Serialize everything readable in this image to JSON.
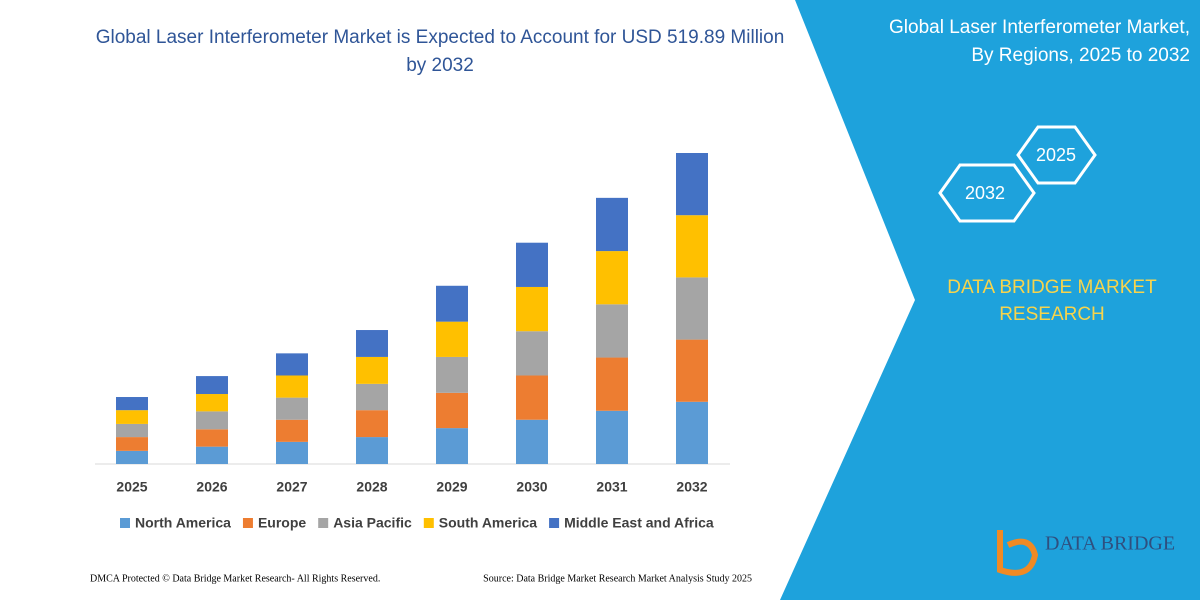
{
  "chart_data": {
    "type": "bar",
    "stacked": true,
    "title": "Global Laser Interferometer Market is Expected to Account for USD 519.89 Million by 2032",
    "categories": [
      "2025",
      "2026",
      "2027",
      "2028",
      "2029",
      "2030",
      "2031",
      "2032"
    ],
    "series": [
      {
        "name": "North America",
        "color": "#5b9bd5",
        "values": [
          22,
          29,
          37,
          45,
          60,
          74,
          89,
          104
        ]
      },
      {
        "name": "Europe",
        "color": "#ed7d31",
        "values": [
          23,
          29,
          37,
          45,
          59,
          74,
          89,
          104
        ]
      },
      {
        "name": "Asia Pacific",
        "color": "#a5a5a5",
        "values": [
          22,
          30,
          37,
          44,
          60,
          74,
          89,
          104
        ]
      },
      {
        "name": "South America",
        "color": "#ffc000",
        "values": [
          23,
          29,
          37,
          45,
          59,
          74,
          89,
          104
        ]
      },
      {
        "name": "Middle East and Africa",
        "color": "#4472c4",
        "values": [
          22,
          30,
          37,
          45,
          60,
          74,
          89,
          104
        ]
      }
    ],
    "legend": "bottom"
  },
  "panel": {
    "title": [
      "Global Laser Interferometer Market,",
      "By Regions, 2025 to 2032"
    ],
    "hexagons": [
      "2025",
      "2032"
    ],
    "brand": [
      "DATA BRIDGE MARKET",
      "RESEARCH"
    ]
  },
  "logo": "DATA BRIDGE",
  "footer": {
    "left": "DMCA Protected © Data Bridge Market Research-  All Rights Reserved.",
    "right": "Source: Data Bridge Market Research  Market Analysis Study 2025"
  }
}
